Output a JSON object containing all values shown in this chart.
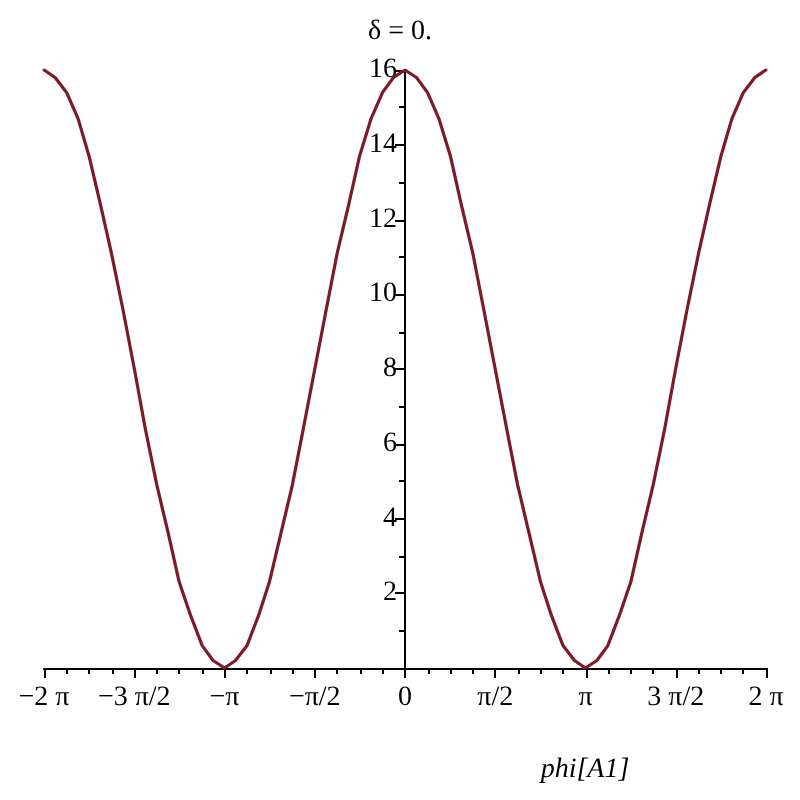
{
  "chart_data": {
    "type": "line",
    "title": "δ = 0.",
    "xlabel": "phi[A1]",
    "color": "#7d1a28",
    "line_style": "solid",
    "xlim": [
      -6.283185,
      6.283185
    ],
    "xticks": [
      {
        "value": -6.283185,
        "label": "−2 π"
      },
      {
        "value": -5.890486,
        "label": null
      },
      {
        "value": -5.497787,
        "label": null
      },
      {
        "value": -5.105088,
        "label": null
      },
      {
        "value": -4.712389,
        "label": "−3 π/2"
      },
      {
        "value": -4.31969,
        "label": null
      },
      {
        "value": -3.926991,
        "label": null
      },
      {
        "value": -3.534292,
        "label": null
      },
      {
        "value": -3.141593,
        "label": "−π"
      },
      {
        "value": -2.748894,
        "label": null
      },
      {
        "value": -2.356194,
        "label": null
      },
      {
        "value": -1.963495,
        "label": null
      },
      {
        "value": -1.570796,
        "label": "−π/2"
      },
      {
        "value": -1.178097,
        "label": null
      },
      {
        "value": -0.785398,
        "label": null
      },
      {
        "value": -0.392699,
        "label": null
      },
      0,
      {
        "value": 0.392699,
        "label": null
      },
      {
        "value": 0.785398,
        "label": null
      },
      {
        "value": 1.178097,
        "label": null
      },
      {
        "value": 1.570796,
        "label": "π/2"
      },
      {
        "value": 1.963495,
        "label": null
      },
      {
        "value": 2.356194,
        "label": null
      },
      {
        "value": 2.748894,
        "label": null
      },
      {
        "value": 3.141593,
        "label": "π"
      },
      {
        "value": 3.534292,
        "label": null
      },
      {
        "value": 3.926991,
        "label": null
      },
      {
        "value": 4.31969,
        "label": null
      },
      {
        "value": 4.712389,
        "label": "3 π/2"
      },
      {
        "value": 5.105088,
        "label": null
      },
      {
        "value": 5.497787,
        "label": null
      },
      {
        "value": 5.890486,
        "label": null
      },
      {
        "value": 6.283185,
        "label": "2 π"
      }
    ],
    "ylim": [
      0,
      16
    ],
    "yticks": [
      {
        "value": 1,
        "label": null
      },
      2,
      {
        "value": 3,
        "label": null
      },
      4,
      {
        "value": 5,
        "label": null
      },
      6,
      {
        "value": 7,
        "label": null
      },
      8,
      {
        "value": 9,
        "label": null
      },
      10,
      {
        "value": 11,
        "label": null
      },
      12,
      {
        "value": 13,
        "label": null
      },
      14,
      {
        "value": 15,
        "label": null
      },
      16
    ],
    "x": [
      -6.28,
      -6.09,
      -5.89,
      -5.69,
      -5.5,
      -5.3,
      -5.11,
      -4.91,
      -4.71,
      -4.52,
      -4.32,
      -4.12,
      -3.93,
      -3.73,
      -3.53,
      -3.34,
      -3.14,
      -2.95,
      -2.75,
      -2.55,
      -2.36,
      -2.16,
      -1.96,
      -1.77,
      -1.57,
      -1.37,
      -1.18,
      -0.98,
      -0.79,
      -0.59,
      -0.39,
      -0.2,
      0,
      0.2,
      0.39,
      0.59,
      0.79,
      0.98,
      1.18,
      1.37,
      1.57,
      1.77,
      1.96,
      2.16,
      2.36,
      2.55,
      2.75,
      2.95,
      3.14,
      3.34,
      3.53,
      3.73,
      3.93,
      4.12,
      4.32,
      4.52,
      4.71,
      4.91,
      5.11,
      5.3,
      5.5,
      5.69,
      5.89,
      6.09,
      6.28
    ],
    "values": [
      16,
      15.8,
      15.4,
      14.7,
      13.7,
      12.4,
      11.1,
      9.6,
      8,
      6.4,
      4.9,
      3.6,
      2.3,
      1.4,
      0.6,
      0.2,
      0,
      0.2,
      0.6,
      1.4,
      2.3,
      3.6,
      4.9,
      6.4,
      8,
      9.6,
      11.1,
      12.4,
      13.7,
      14.7,
      15.4,
      15.8,
      16,
      15.8,
      15.4,
      14.7,
      13.7,
      12.4,
      11.1,
      9.6,
      8,
      6.4,
      4.9,
      3.6,
      2.3,
      1.4,
      0.6,
      0.2,
      0,
      0.2,
      0.6,
      1.4,
      2.3,
      3.6,
      4.9,
      6.4,
      8,
      9.6,
      11.1,
      12.4,
      13.7,
      14.7,
      15.4,
      15.8,
      16
    ]
  }
}
